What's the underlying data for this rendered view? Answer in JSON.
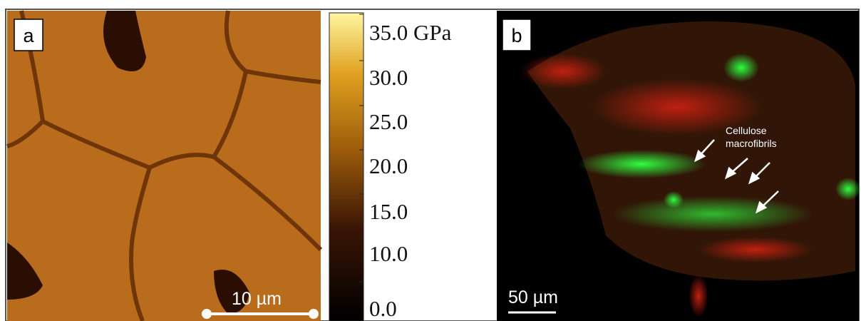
{
  "panel_a": {
    "label": "a",
    "scale_bar": "10 µm"
  },
  "colorbar": {
    "labels": [
      "35.0 GPa",
      "30.0",
      "25.0",
      "20.0",
      "15.0",
      "10.0",
      "0.0"
    ]
  },
  "panel_b": {
    "label": "b",
    "scale_bar": "50 µm",
    "annotation": [
      "Cellulose",
      "macrofibrils"
    ]
  }
}
